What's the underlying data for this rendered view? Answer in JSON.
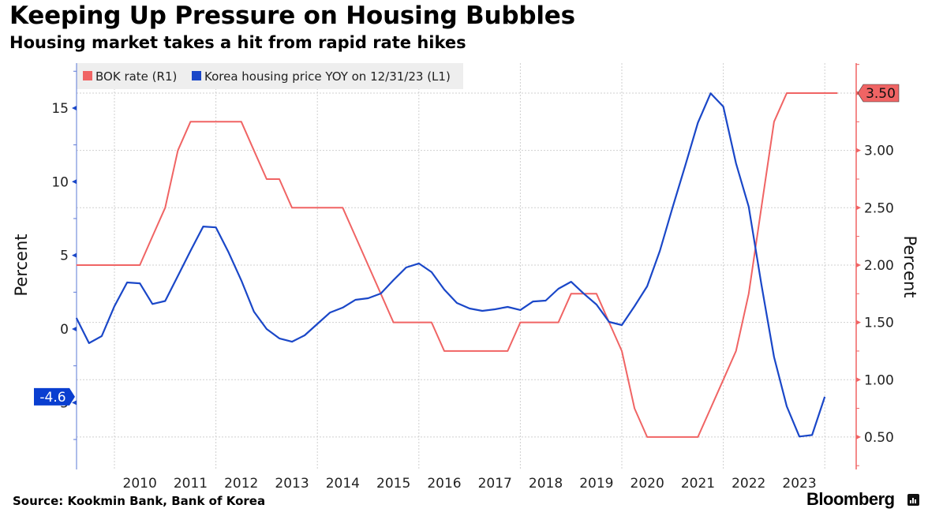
{
  "header": {
    "title": "Keeping Up Pressure on Housing Bubbles",
    "subtitle": "Housing market takes a hit from rapid rate hikes"
  },
  "footer": {
    "source": "Source: Kookmin Bank, Bank of Korea",
    "brand": "Bloomberg"
  },
  "chart_data": {
    "type": "line",
    "title": "Keeping Up Pressure on Housing Bubbles",
    "subtitle": "Housing market takes a hit from rapid rate hikes",
    "xlabel": "",
    "x_tick_labels": [
      "2010",
      "2011",
      "2012",
      "2013",
      "2014",
      "2015",
      "2016",
      "2017",
      "2018",
      "2019",
      "2020",
      "2021",
      "2022",
      "2023"
    ],
    "x_range": [
      2009.0,
      2024.4
    ],
    "x_frequency": "quarterly",
    "y_left": {
      "label": "Percent",
      "range": [
        -10,
        18
      ],
      "ticks": [
        -5,
        0,
        5,
        10,
        15
      ],
      "tick_labels": [
        "-5",
        "0",
        "5",
        "10",
        "15"
      ]
    },
    "y_right": {
      "label": "Percent",
      "range": [
        0.25,
        3.9
      ],
      "ticks": [
        0.5,
        1.0,
        1.5,
        2.0,
        2.5,
        3.0,
        3.5
      ],
      "tick_labels": [
        "0.50",
        "1.00",
        "1.50",
        "2.00",
        "2.50",
        "3.00",
        "3.50"
      ]
    },
    "grid": true,
    "legend_position": "top-left",
    "series": [
      {
        "name": "BOK rate (R1)",
        "axis": "right",
        "color": "#f06464",
        "x_start": 2009.25,
        "x_step": 0.25,
        "values": [
          2.0,
          2.0,
          2.0,
          2.0,
          2.0,
          2.0,
          2.25,
          2.5,
          3.0,
          3.25,
          3.25,
          3.25,
          3.25,
          3.25,
          3.0,
          2.75,
          2.75,
          2.5,
          2.5,
          2.5,
          2.5,
          2.5,
          2.25,
          2.0,
          1.75,
          1.5,
          1.5,
          1.5,
          1.5,
          1.25,
          1.25,
          1.25,
          1.25,
          1.25,
          1.25,
          1.5,
          1.5,
          1.5,
          1.5,
          1.75,
          1.75,
          1.75,
          1.5,
          1.25,
          0.75,
          0.5,
          0.5,
          0.5,
          0.5,
          0.5,
          0.75,
          1.0,
          1.25,
          1.75,
          2.5,
          3.25,
          3.5,
          3.5,
          3.5,
          3.5,
          3.5
        ],
        "last_value_label": "3.50"
      },
      {
        "name": "Korea housing price YOY on 12/31/23 (L1)",
        "axis": "left",
        "color": "#1a47c8",
        "x_start": 2009.25,
        "x_step": 0.25,
        "values": [
          0.75,
          -0.96,
          -0.48,
          1.55,
          3.16,
          3.1,
          1.7,
          1.9,
          3.6,
          5.3,
          6.96,
          6.9,
          5.2,
          3.3,
          1.18,
          0.0,
          -0.64,
          -0.86,
          -0.43,
          0.35,
          1.12,
          1.45,
          1.98,
          2.09,
          2.41,
          3.32,
          4.18,
          4.45,
          3.86,
          2.68,
          1.77,
          1.39,
          1.23,
          1.34,
          1.5,
          1.29,
          1.87,
          1.93,
          2.73,
          3.21,
          2.4,
          1.66,
          0.48,
          0.27,
          1.55,
          2.9,
          5.3,
          8.25,
          11.1,
          14.0,
          16.0,
          15.1,
          11.25,
          8.3,
          3.05,
          -1.9,
          -5.25,
          -7.3,
          -7.2,
          -4.6
        ],
        "last_value_label": "-4.6"
      }
    ]
  }
}
